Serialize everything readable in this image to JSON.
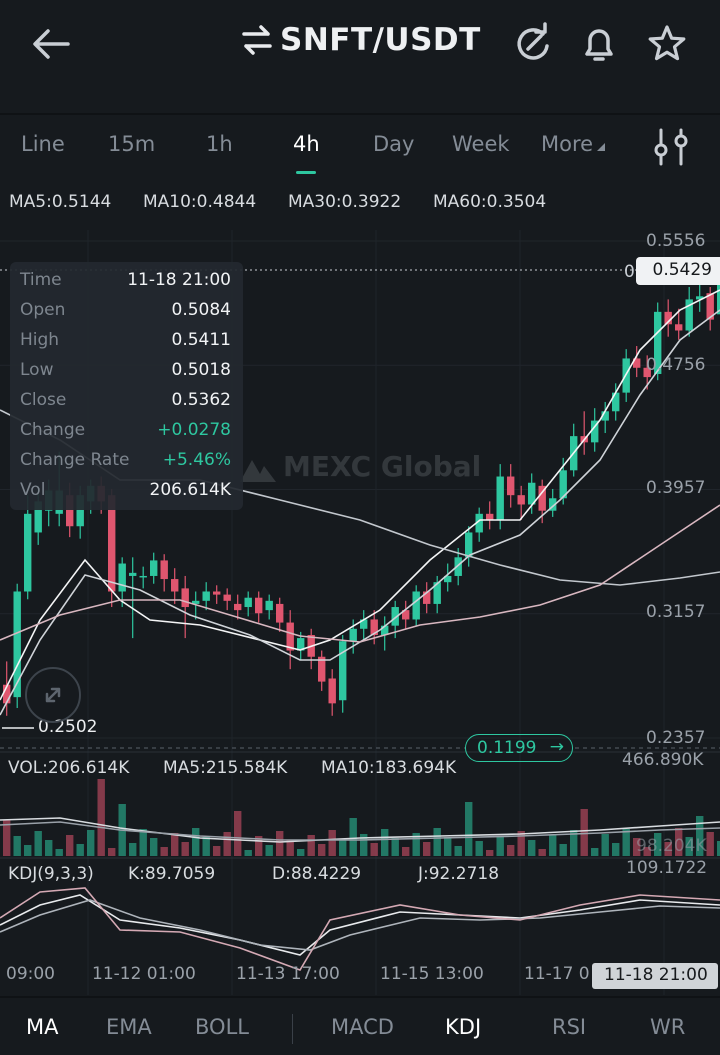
{
  "header": {
    "pair": "SNFT/USDT",
    "back_icon": "arrow-left-icon",
    "swap_icon": "swap-arrows-icon",
    "actions": [
      "refresh-icon",
      "bell-icon",
      "star-icon"
    ]
  },
  "timeframes": {
    "tabs": [
      "Line",
      "15m",
      "1h",
      "4h",
      "Day",
      "Week",
      "More"
    ],
    "active": "4h",
    "indicator_icon": "settings-sliders-icon"
  },
  "ma_legend": {
    "ma5": "MA5:0.5144",
    "ma10": "MA10:0.4844",
    "ma30": "MA30:0.3922",
    "ma60": "MA60:0.3504"
  },
  "info_panel": {
    "rows": [
      {
        "label": "Time",
        "value": "11-18 21:00"
      },
      {
        "label": "Open",
        "value": "0.5084"
      },
      {
        "label": "High",
        "value": "0.5411"
      },
      {
        "label": "Low",
        "value": "0.5018"
      },
      {
        "label": "Close",
        "value": "0.5362"
      },
      {
        "label": "Change",
        "value": "+0.0278"
      },
      {
        "label": "Change Rate",
        "value": "+5.46%"
      },
      {
        "label": "Vol",
        "value": "206.614K"
      }
    ]
  },
  "watermark": "MEXC Global",
  "price_axis": {
    "labels": [
      "0.5556",
      "0.4756",
      "0.3957",
      "0.3157",
      "0.2357"
    ],
    "crosshair_price": "0.5429",
    "crosshair_prefix": "0",
    "low_marker": "0.2502",
    "current_price": "0.1199",
    "current_arrow": "→"
  },
  "volume": {
    "vol": "VOL:206.614K",
    "ma5": "MA5:215.584K",
    "ma10": "MA10:183.694K",
    "max": "466.890K",
    "overlay": "98.204K"
  },
  "kdj": {
    "title": "KDJ(9,3,3)",
    "k": "K:89.7059",
    "d": "D:88.4229",
    "j": "J:92.2718",
    "max": "109.1722"
  },
  "time_axis": {
    "labels": [
      "09:00",
      "11-12 01:00",
      "11-13 17:00",
      "11-15 13:00",
      "11-17 0"
    ],
    "highlight": "11-18 21:00"
  },
  "indicator_tabs": {
    "main": [
      "MA",
      "EMA",
      "BOLL"
    ],
    "sub": [
      "MACD",
      "KDJ",
      "RSI",
      "WR"
    ],
    "active_main": "MA",
    "active_sub": "KDJ"
  },
  "colors": {
    "up": "#2ec7a0",
    "down": "#e0566f",
    "background": "#161a1e"
  },
  "chart_data": {
    "type": "candlestick",
    "series": [
      {
        "name": "MA5",
        "values": [
          0.2502
        ]
      },
      {
        "name": "MA10",
        "values": []
      },
      {
        "name": "MA30",
        "values": []
      },
      {
        "name": "MA60",
        "values": []
      }
    ],
    "selected_candle": {
      "time": "11-18 21:00",
      "open": 0.5084,
      "high": 0.5411,
      "low": 0.5018,
      "close": 0.5362
    },
    "ylim": [
      0.2357,
      0.5556
    ]
  }
}
